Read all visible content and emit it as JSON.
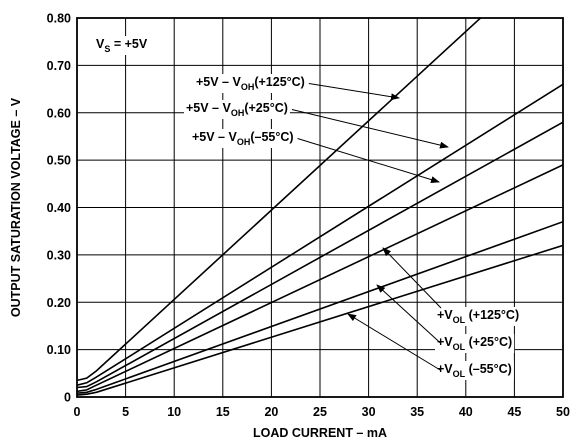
{
  "chart_data": {
    "type": "line",
    "title": "",
    "xlabel": "LOAD CURRENT – mA",
    "ylabel": "OUTPUT SATURATION VOLTAGE – V",
    "xlim": [
      0,
      50
    ],
    "ylim": [
      0,
      0.8
    ],
    "x_ticks": [
      0,
      5,
      10,
      15,
      20,
      25,
      30,
      35,
      40,
      45,
      50
    ],
    "y_ticks": [
      0,
      0.1,
      0.2,
      0.3,
      0.4,
      0.5,
      0.6,
      0.7,
      0.8
    ],
    "y_tick_labels": [
      "0",
      "0.10",
      "0.20",
      "0.30",
      "0.40",
      "0.50",
      "0.60",
      "0.70",
      "0.80"
    ],
    "grid": true,
    "condition": {
      "main": "V",
      "sub": "S",
      "rest": " = +5V"
    },
    "series": [
      {
        "name": "+5V – VOH (+125°C)",
        "label": {
          "pre": "+5V – V",
          "sub": "OH",
          "post": "(+125°C)"
        },
        "x": [
          0,
          1,
          2,
          50
        ],
        "y": [
          0.035,
          0.04,
          0.055,
          0.96
        ]
      },
      {
        "name": "+5V – VOH (+25°C)",
        "label": {
          "pre": "+5V – V",
          "sub": "OH",
          "post": "(+25°C)"
        },
        "x": [
          0,
          1,
          2,
          50
        ],
        "y": [
          0.025,
          0.03,
          0.042,
          0.66
        ]
      },
      {
        "name": "+5V – VOH (–55°C)",
        "label": {
          "pre": "+5V – V",
          "sub": "OH",
          "post": "(–55°C)"
        },
        "x": [
          0,
          1,
          2,
          50
        ],
        "y": [
          0.02,
          0.022,
          0.032,
          0.58
        ]
      },
      {
        "name": "+VOL (+125°C)",
        "label": {
          "pre": "+V",
          "sub": "OL",
          "post": " (+125°C)"
        },
        "x": [
          0,
          1,
          2,
          50
        ],
        "y": [
          0.012,
          0.015,
          0.025,
          0.49
        ]
      },
      {
        "name": "+VOL (+25°C)",
        "label": {
          "pre": "+V",
          "sub": "OL",
          "post": " (+25°C)"
        },
        "x": [
          0,
          1,
          2,
          50
        ],
        "y": [
          0.008,
          0.01,
          0.016,
          0.37
        ]
      },
      {
        "name": "+VOL (–55°C)",
        "label": {
          "pre": "+V",
          "sub": "OL",
          "post": " (–55°C)"
        },
        "x": [
          0,
          1,
          2,
          50
        ],
        "y": [
          0.004,
          0.006,
          0.01,
          0.32
        ]
      }
    ]
  }
}
